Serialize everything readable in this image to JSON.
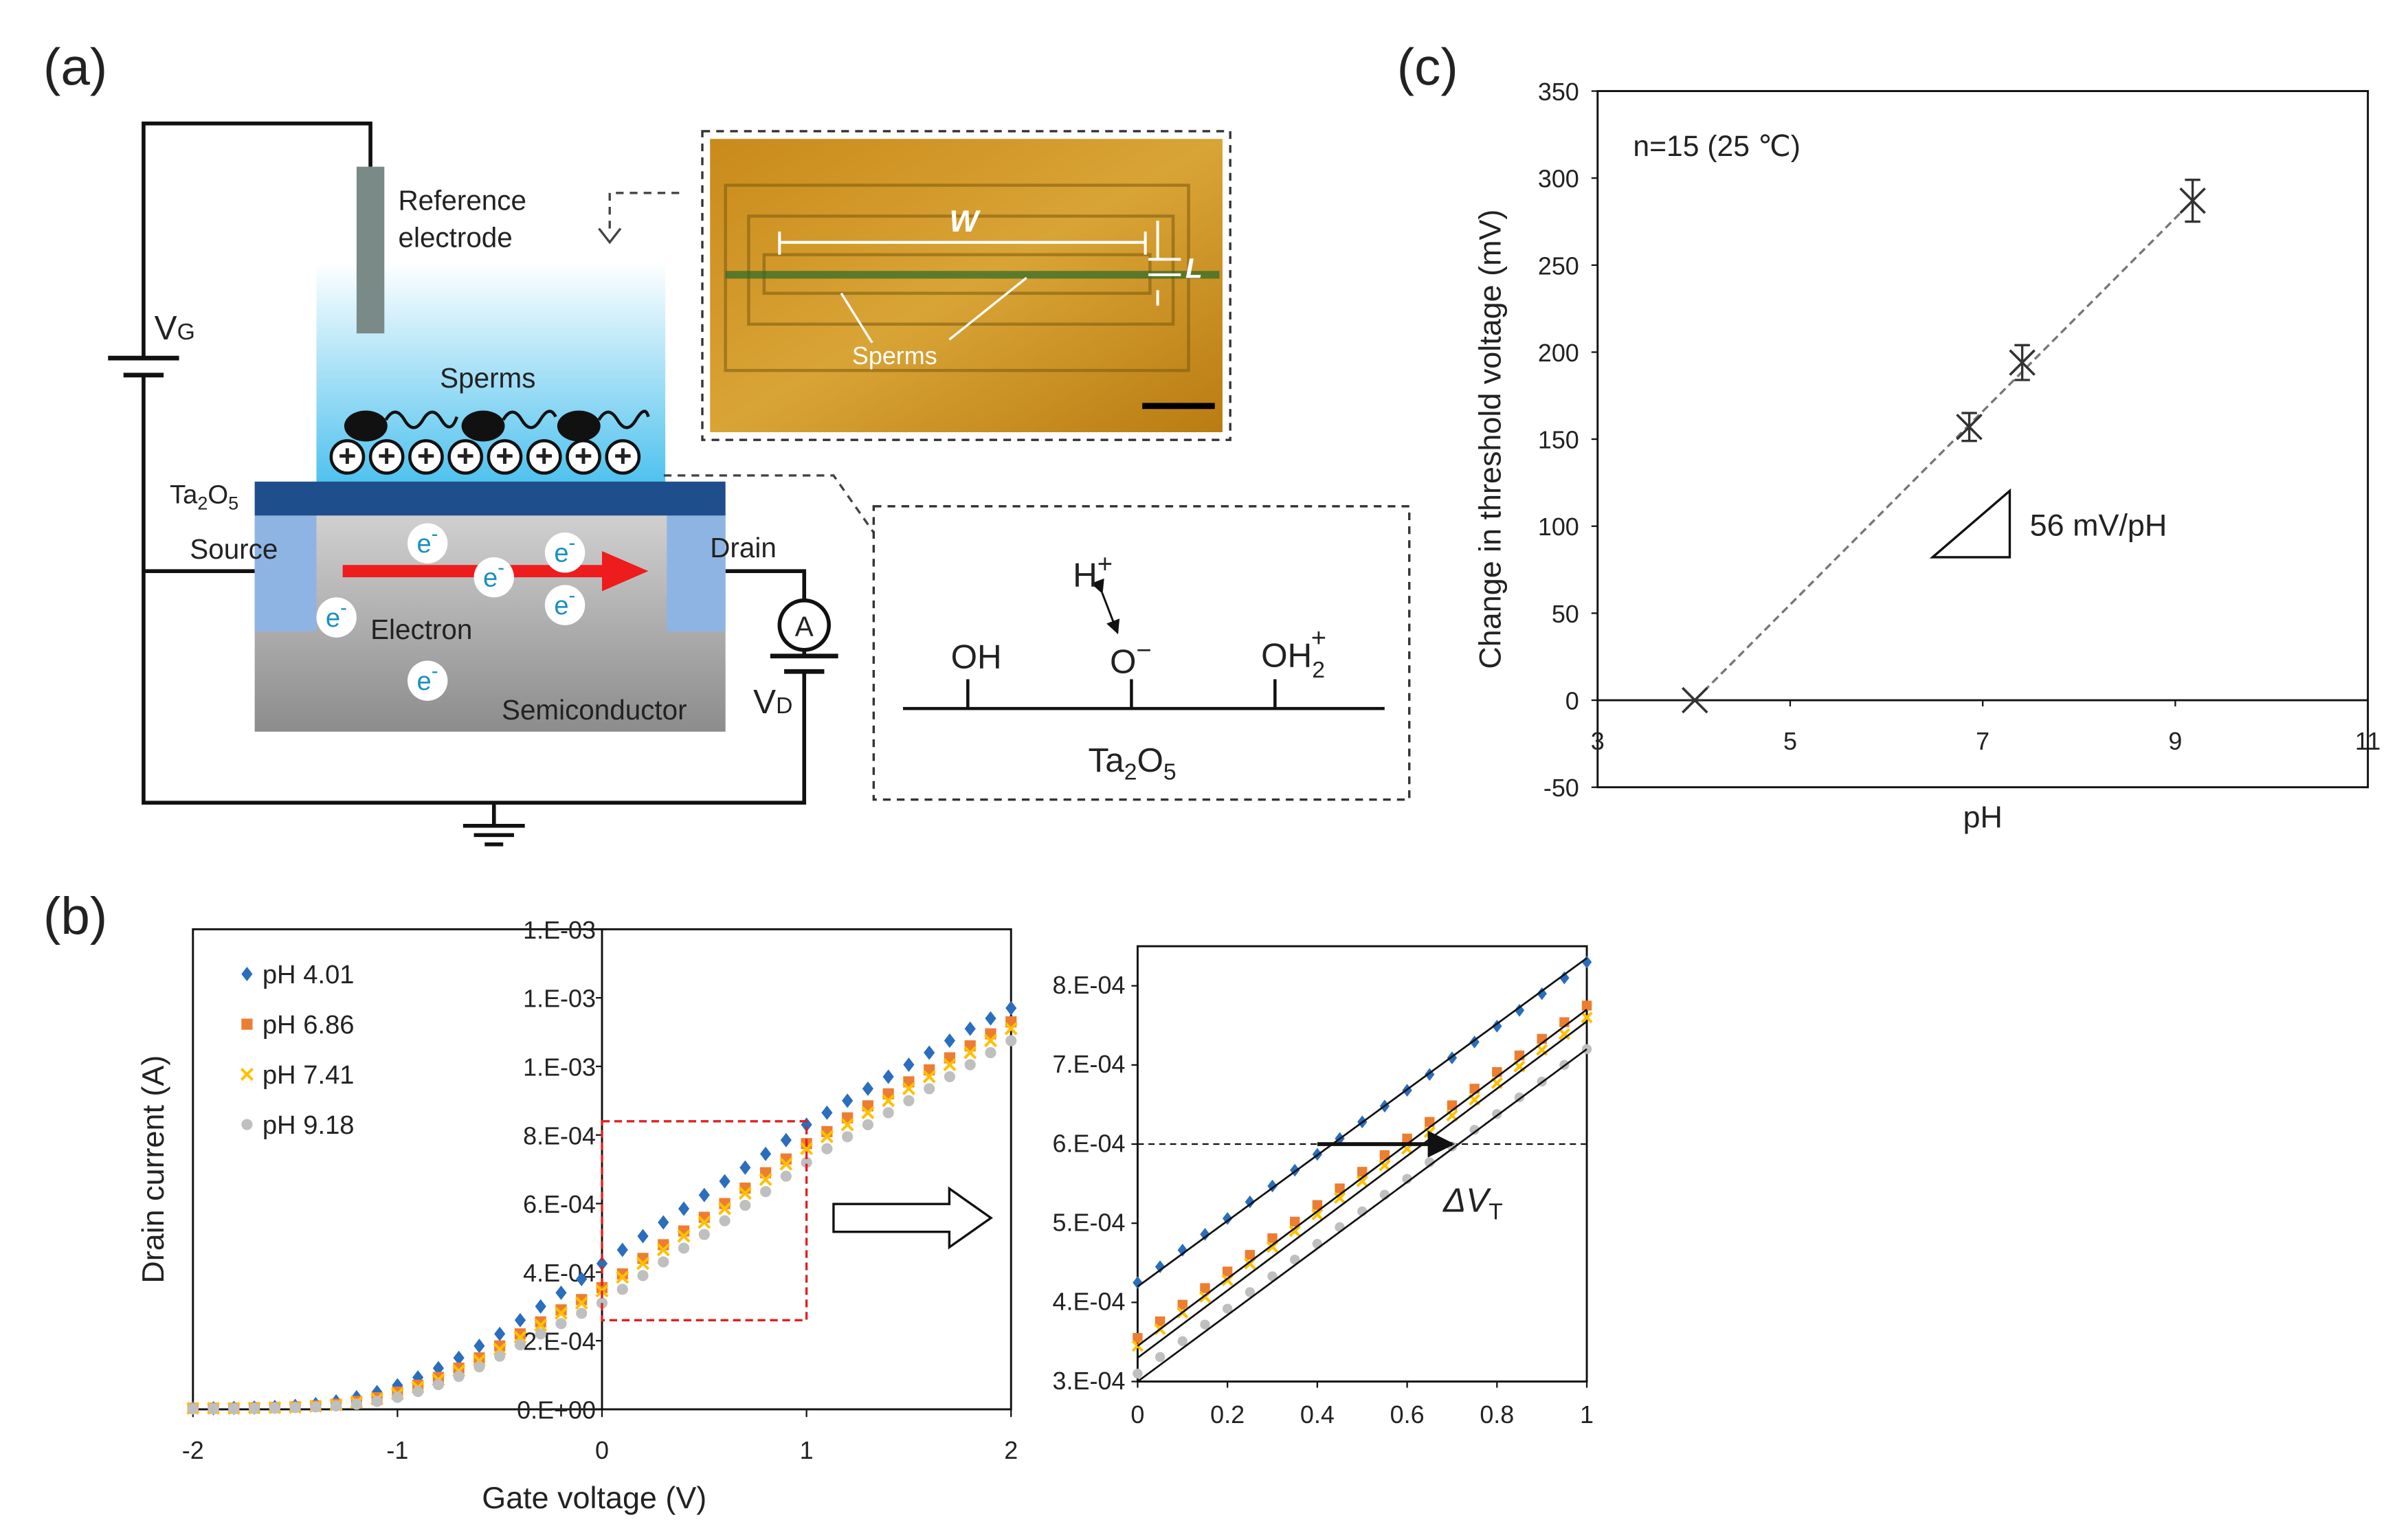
{
  "panel_labels": [
    "(a)",
    "(b)",
    "(c)"
  ],
  "diagram": {
    "reference_electrode": [
      "Reference",
      "electrode"
    ],
    "vg": {
      "main": "V",
      "sub": "G"
    },
    "sperms": "Sperms",
    "ta2o5": [
      "Ta",
      "2",
      "O",
      "5"
    ],
    "source": "Source",
    "drain": "Drain",
    "electron": "Electron",
    "semiconductor": "Semiconductor",
    "vd": {
      "main": "V",
      "sub": "D"
    },
    "ammeter": "A",
    "electron_symbol": {
      "main": "e",
      "sup": "-"
    },
    "plus": "+",
    "micrograph": {
      "w": "W",
      "l": "L",
      "sperms": "Sperms"
    },
    "surface": {
      "h": {
        "main": "H",
        "sup": "+"
      },
      "oh": "OH",
      "o": {
        "main": "O",
        "sup": "−"
      },
      "oh2": {
        "main": "OH",
        "sub": "2",
        "sup": "+"
      },
      "material": [
        "Ta",
        "2",
        "O",
        "5"
      ]
    }
  },
  "chart_data": [
    {
      "type": "scatter",
      "xlabel": "Gate voltage (V)",
      "ylabel": "Drain current (A)",
      "x": [
        -2,
        -1.9,
        -1.8,
        -1.7,
        -1.6,
        -1.5,
        -1.4,
        -1.3,
        -1.2,
        -1.1,
        -1,
        -0.9,
        -0.8,
        -0.7,
        -0.6,
        -0.5,
        -0.4,
        -0.3,
        -0.2,
        -0.1,
        0,
        0.1,
        0.2,
        0.3,
        0.4,
        0.5,
        0.6,
        0.7,
        0.8,
        0.9,
        1,
        1.1,
        1.2,
        1.3,
        1.4,
        1.5,
        1.6,
        1.7,
        1.8,
        1.9,
        2
      ],
      "series": [
        {
          "name": "pH 4.01",
          "color": "#2a6ebd",
          "marker": "diamond",
          "values": [
            3e-06,
            3e-06,
            4e-06,
            5e-06,
            7e-06,
            1e-05,
            1.5e-05,
            2.3e-05,
            3.5e-05,
            5e-05,
            7e-05,
            9.3e-05,
            0.00012,
            0.00015,
            0.000185,
            0.00022,
            0.00026,
            0.0003,
            0.00034,
            0.00038,
            0.000425,
            0.000465,
            0.000505,
            0.000545,
            0.000585,
            0.000625,
            0.000665,
            0.000705,
            0.000745,
            0.000785,
            0.00083,
            0.000865,
            0.0009,
            0.000935,
            0.00097,
            0.001005,
            0.00104,
            0.001075,
            0.00111,
            0.00114,
            0.00117
          ]
        },
        {
          "name": "pH 6.86",
          "color": "#ed7d31",
          "marker": "square",
          "values": [
            3e-06,
            3e-06,
            3e-06,
            4e-06,
            5e-06,
            7e-06,
            1e-05,
            1.5e-05,
            2.3e-05,
            3.4e-05,
            5e-05,
            7e-05,
            9.3e-05,
            0.00012,
            0.00015,
            0.000185,
            0.00022,
            0.000255,
            0.00029,
            0.00032,
            0.000355,
            0.000395,
            0.00044,
            0.00048,
            0.00052,
            0.00056,
            0.0006,
            0.000645,
            0.00069,
            0.00073,
            0.000775,
            0.00081,
            0.00085,
            0.000885,
            0.00092,
            0.000955,
            0.00099,
            0.001025,
            0.00106,
            0.001095,
            0.00113
          ]
        },
        {
          "name": "pH 7.41",
          "color": "#ffc000",
          "marker": "x",
          "values": [
            3e-06,
            3e-06,
            3e-06,
            4e-06,
            5e-06,
            6e-06,
            9e-06,
            1.3e-05,
            2e-05,
            3e-05,
            4.5e-05,
            6.4e-05,
            8.6e-05,
            0.000112,
            0.000142,
            0.000175,
            0.00021,
            0.000245,
            0.00028,
            0.00031,
            0.000345,
            0.000385,
            0.000425,
            0.000465,
            0.000505,
            0.000545,
            0.000585,
            0.00063,
            0.00067,
            0.000715,
            0.00076,
            0.000795,
            0.00083,
            0.000865,
            0.0009,
            0.000935,
            0.00097,
            0.001005,
            0.00104,
            0.001075,
            0.00111
          ]
        },
        {
          "name": "pH 9.18",
          "color": "#bfbfbf",
          "marker": "circle",
          "values": [
            2e-06,
            2e-06,
            2e-06,
            3e-06,
            4e-06,
            5e-06,
            7e-06,
            1e-05,
            1.5e-05,
            2.3e-05,
            3.5e-05,
            5.2e-05,
            7.2e-05,
            9.6e-05,
            0.000124,
            0.000155,
            0.000188,
            0.00022,
            0.00025,
            0.00028,
            0.00031,
            0.00035,
            0.00039,
            0.00043,
            0.00047,
            0.00051,
            0.00055,
            0.000595,
            0.000635,
            0.00068,
            0.00072,
            0.00076,
            0.000795,
            0.00083,
            0.000865,
            0.0009,
            0.000935,
            0.00097,
            0.001005,
            0.00104,
            0.001075
          ]
        }
      ],
      "xlim": [
        -2,
        2
      ],
      "xticks": [
        -2,
        -1,
        0,
        1,
        2
      ],
      "ylim": [
        0,
        0.0014
      ],
      "yticks": [
        {
          "value": 0,
          "label": "0.E+00"
        },
        {
          "value": 0.0002,
          "label": "2.E-04"
        },
        {
          "value": 0.0004,
          "label": "4.E-04"
        },
        {
          "value": 0.0006,
          "label": "6.E-04"
        },
        {
          "value": 0.0008,
          "label": "8.E-04"
        },
        {
          "value": 0.001,
          "label": "1.E-03"
        },
        {
          "value": 0.0012,
          "label": "1.E-03"
        },
        {
          "value": 0.0014,
          "label": "1.E-03"
        }
      ],
      "legend": "upper left",
      "zoom_box": {
        "x": [
          0,
          1
        ],
        "y": [
          0.00026,
          0.00084
        ],
        "color": "#e02020"
      }
    },
    {
      "type": "scatter",
      "x": [
        0,
        0.05,
        0.1,
        0.15,
        0.2,
        0.25,
        0.3,
        0.35,
        0.4,
        0.45,
        0.5,
        0.55,
        0.6,
        0.65,
        0.7,
        0.75,
        0.8,
        0.85,
        0.9,
        0.95,
        1
      ],
      "series": [
        {
          "color": "#2a6ebd",
          "marker": "diamond",
          "values": [
            0.000425,
            0.000445,
            0.000466,
            0.000486,
            0.000506,
            0.000527,
            0.000547,
            0.000567,
            0.000587,
            0.000607,
            0.000628,
            0.000648,
            0.000668,
            0.000688,
            0.000709,
            0.000729,
            0.000749,
            0.000769,
            0.00079,
            0.00081,
            0.00083
          ]
        },
        {
          "color": "#ed7d31",
          "marker": "square",
          "values": [
            0.000355,
            0.000376,
            0.000397,
            0.000418,
            0.000439,
            0.00046,
            0.000481,
            0.000502,
            0.000523,
            0.000544,
            0.000565,
            0.000586,
            0.000607,
            0.000628,
            0.000649,
            0.00067,
            0.000691,
            0.000712,
            0.000733,
            0.000754,
            0.000775
          ]
        },
        {
          "color": "#ffc000",
          "marker": "x",
          "values": [
            0.000345,
            0.000366,
            0.000387,
            0.000407,
            0.000428,
            0.000449,
            0.00047,
            0.00049,
            0.000511,
            0.000532,
            0.000553,
            0.000573,
            0.000594,
            0.000615,
            0.000636,
            0.000656,
            0.000677,
            0.000698,
            0.000719,
            0.000739,
            0.00076
          ]
        },
        {
          "color": "#bfbfbf",
          "marker": "circle",
          "values": [
            0.00031,
            0.000331,
            0.000351,
            0.000372,
            0.000392,
            0.000413,
            0.000433,
            0.000454,
            0.000474,
            0.000495,
            0.000515,
            0.000536,
            0.000556,
            0.000577,
            0.000597,
            0.000618,
            0.000638,
            0.000659,
            0.000679,
            0.0007,
            0.00072
          ]
        }
      ],
      "fit_lines": [
        {
          "x": [
            0,
            1
          ],
          "values": [
            0.00042,
            0.000835
          ]
        },
        {
          "x": [
            0,
            1
          ],
          "values": [
            0.000345,
            0.00077
          ]
        },
        {
          "x": [
            0,
            1
          ],
          "values": [
            0.00033,
            0.000755
          ]
        },
        {
          "x": [
            0,
            1
          ],
          "values": [
            0.0003,
            0.00072
          ]
        }
      ],
      "reference_line": 0.0006,
      "arrow": {
        "x": [
          0.4,
          0.7
        ],
        "y": 0.0006
      },
      "annotation": {
        "text": "ΔV",
        "sub": "T"
      },
      "xlim": [
        0,
        1
      ],
      "xticks": [
        0,
        0.2,
        0.4,
        0.6,
        0.8,
        1
      ],
      "ylim": [
        0.0003,
        0.00085
      ],
      "yticks": [
        {
          "value": 0.0003,
          "label": "3.E-04"
        },
        {
          "value": 0.0004,
          "label": "4.E-04"
        },
        {
          "value": 0.0005,
          "label": "5.E-04"
        },
        {
          "value": 0.0006,
          "label": "6.E-04"
        },
        {
          "value": 0.0007,
          "label": "7.E-04"
        },
        {
          "value": 0.0008,
          "label": "8.E-04"
        }
      ]
    },
    {
      "type": "scatter",
      "xlabel": "pH",
      "ylabel": "Change in threshold voltage (mV)",
      "annotations": [
        "n=15 (25 ℃)",
        "56 mV/pH"
      ],
      "x": [
        4.01,
        6.86,
        7.41,
        9.18
      ],
      "values": [
        0,
        157,
        194,
        287
      ],
      "errors": [
        0,
        8,
        10,
        12
      ],
      "color": "#333333",
      "marker": "cross",
      "trendline": {
        "x": [
          4.01,
          9.18
        ],
        "values": [
          0,
          287
        ],
        "color": "#777777"
      },
      "xlim": [
        3,
        11
      ],
      "xticks": [
        3,
        5,
        7,
        9,
        11
      ],
      "ylim": [
        -50,
        350
      ],
      "yticks": [
        -50,
        0,
        50,
        100,
        150,
        200,
        250,
        300,
        350
      ]
    }
  ]
}
